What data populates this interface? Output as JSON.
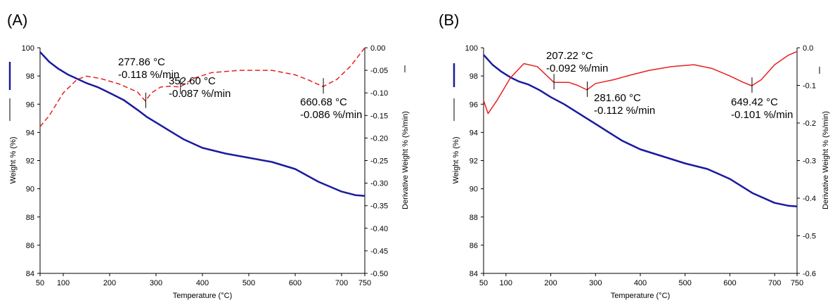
{
  "chart_data": [
    {
      "type": "line",
      "panel_label": "(A)",
      "xlabel": "Temperature (°C)",
      "ylabel": "Weight % (%)",
      "y2label": "Derivative Weight % (%/min)",
      "xlim": [
        50,
        750
      ],
      "ylim": [
        84,
        100
      ],
      "y2lim": [
        -0.5,
        0.0
      ],
      "xticks": [
        50,
        100,
        200,
        300,
        400,
        500,
        600,
        700,
        750
      ],
      "yticks": [
        84,
        86,
        88,
        90,
        92,
        94,
        96,
        98,
        100
      ],
      "y2ticks": [
        "0.00",
        "-0.05",
        "-0.10",
        "-0.15",
        "-0.20",
        "-0.25",
        "-0.30",
        "-0.35",
        "-0.40",
        "-0.45",
        "-0.50"
      ],
      "y2tick_values": [
        0,
        -0.05,
        -0.1,
        -0.15,
        -0.2,
        -0.25,
        -0.3,
        -0.35,
        -0.4,
        -0.45,
        -0.5
      ],
      "grid": false,
      "series": [
        {
          "axis": "left",
          "color": "#1a1aa0",
          "style": "solid",
          "x": [
            50,
            70,
            90,
            110,
            130,
            150,
            175,
            200,
            230,
            260,
            280,
            300,
            330,
            360,
            400,
            450,
            500,
            550,
            600,
            650,
            700,
            730,
            750
          ],
          "y": [
            99.7,
            99.0,
            98.5,
            98.1,
            97.8,
            97.5,
            97.2,
            96.8,
            96.3,
            95.6,
            95.1,
            94.7,
            94.1,
            93.5,
            92.9,
            92.5,
            92.2,
            91.9,
            91.4,
            90.5,
            89.8,
            89.55,
            89.5
          ]
        },
        {
          "axis": "right",
          "color": "#e82020",
          "style": "dashed",
          "x": [
            50,
            70,
            100,
            130,
            150,
            180,
            220,
            260,
            277,
            290,
            310,
            330,
            352,
            380,
            420,
            480,
            550,
            600,
            630,
            660,
            690,
            720,
            750
          ],
          "y": [
            -0.175,
            -0.15,
            -0.1,
            -0.07,
            -0.063,
            -0.068,
            -0.08,
            -0.098,
            -0.118,
            -0.1,
            -0.087,
            -0.085,
            -0.087,
            -0.068,
            -0.055,
            -0.05,
            -0.05,
            -0.06,
            -0.072,
            -0.086,
            -0.07,
            -0.04,
            0.0
          ]
        }
      ],
      "annotations": [
        {
          "x": 277.86,
          "y_axis": "right",
          "y": -0.118,
          "lines": [
            "277.86 °C",
            "-0.118 %/min"
          ]
        },
        {
          "x": 352.6,
          "y_axis": "right",
          "y": -0.087,
          "lines": [
            "352.60 °C",
            "-0.087 %/min"
          ]
        },
        {
          "x": 660.68,
          "y_axis": "right",
          "y": -0.086,
          "lines": [
            "660.68 °C",
            "-0.086 %/min"
          ]
        }
      ]
    },
    {
      "type": "line",
      "panel_label": "(B)",
      "xlabel": "Temperature (°C)",
      "ylabel": "Weight % (%)",
      "y2label": "Derivative Weight % (%/min)",
      "xlim": [
        50,
        750
      ],
      "ylim": [
        84,
        100
      ],
      "y2lim": [
        -0.6,
        0.0
      ],
      "xticks": [
        50,
        100,
        200,
        300,
        400,
        500,
        600,
        700,
        750
      ],
      "yticks": [
        84,
        86,
        88,
        90,
        92,
        94,
        96,
        98,
        100
      ],
      "y2ticks": [
        "0.0",
        "-0.1",
        "-0.2",
        "-0.3",
        "-0.4",
        "-0.5",
        "-0.6"
      ],
      "y2tick_values": [
        0,
        -0.1,
        -0.2,
        -0.3,
        -0.4,
        -0.5,
        -0.6
      ],
      "grid": false,
      "series": [
        {
          "axis": "left",
          "color": "#1a1aa0",
          "style": "solid",
          "x": [
            50,
            70,
            90,
            110,
            130,
            150,
            175,
            200,
            230,
            260,
            280,
            300,
            330,
            360,
            400,
            450,
            500,
            550,
            600,
            650,
            700,
            730,
            750
          ],
          "y": [
            99.5,
            98.8,
            98.3,
            97.9,
            97.6,
            97.4,
            97.0,
            96.5,
            96.0,
            95.4,
            95.0,
            94.6,
            94.0,
            93.4,
            92.8,
            92.3,
            91.8,
            91.4,
            90.7,
            89.7,
            89.0,
            88.8,
            88.75
          ]
        },
        {
          "axis": "right",
          "color": "#e82020",
          "style": "solid",
          "x": [
            50,
            60,
            80,
            110,
            140,
            170,
            207,
            240,
            260,
            281,
            300,
            340,
            380,
            420,
            470,
            520,
            560,
            600,
            630,
            649,
            670,
            700,
            730,
            750
          ],
          "y": [
            -0.14,
            -0.175,
            -0.14,
            -0.08,
            -0.042,
            -0.05,
            -0.092,
            -0.092,
            -0.1,
            -0.112,
            -0.095,
            -0.085,
            -0.072,
            -0.06,
            -0.05,
            -0.045,
            -0.055,
            -0.075,
            -0.092,
            -0.101,
            -0.085,
            -0.045,
            -0.02,
            -0.01
          ]
        }
      ],
      "annotations": [
        {
          "x": 207.22,
          "y_axis": "right",
          "y": -0.092,
          "lines": [
            "207.22 °C",
            "-0.092 %/min"
          ]
        },
        {
          "x": 281.6,
          "y_axis": "right",
          "y": -0.112,
          "lines": [
            "281.60 °C",
            "-0.112 %/min"
          ]
        },
        {
          "x": 649.42,
          "y_axis": "right",
          "y": -0.101,
          "lines": [
            "649.42 °C",
            "-0.101 %/min"
          ]
        }
      ]
    }
  ]
}
